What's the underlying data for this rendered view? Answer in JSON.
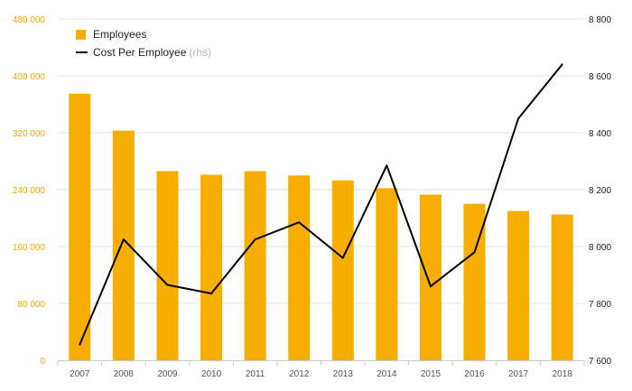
{
  "chart_data": {
    "type": "bar+line",
    "categories": [
      "2007",
      "2008",
      "2009",
      "2010",
      "2011",
      "2012",
      "2013",
      "2014",
      "2015",
      "2016",
      "2017",
      "2018"
    ],
    "series": [
      {
        "name": "Employees",
        "type": "bar",
        "axis": "left",
        "color": "#f8ae00",
        "values": [
          375000,
          323000,
          266000,
          261000,
          266000,
          260000,
          253000,
          242000,
          233000,
          220000,
          210000,
          205000
        ]
      },
      {
        "name": "Cost Per Employee",
        "name_suffix": "(rhs)",
        "type": "line",
        "axis": "right",
        "color": "#000000",
        "values": [
          7655,
          8025,
          7865,
          7835,
          8025,
          8085,
          7960,
          8285,
          7860,
          7980,
          8450,
          8640
        ]
      }
    ],
    "y_left": {
      "ylim": [
        0,
        480000
      ],
      "ticks": [
        0,
        80000,
        160000,
        240000,
        320000,
        400000,
        480000
      ],
      "tick_labels": [
        "0",
        "80 000",
        "160 000",
        "240 000",
        "320 000",
        "400 000",
        "480 000"
      ]
    },
    "y_right": {
      "ylim": [
        7600,
        8800
      ],
      "ticks": [
        7600,
        7800,
        8000,
        8200,
        8400,
        8600,
        8800
      ],
      "tick_labels": [
        "7 600",
        "7 800",
        "8 000",
        "8 200",
        "8 400",
        "8 600",
        "8 800"
      ]
    },
    "grid": true,
    "legend_position": "top-left"
  }
}
